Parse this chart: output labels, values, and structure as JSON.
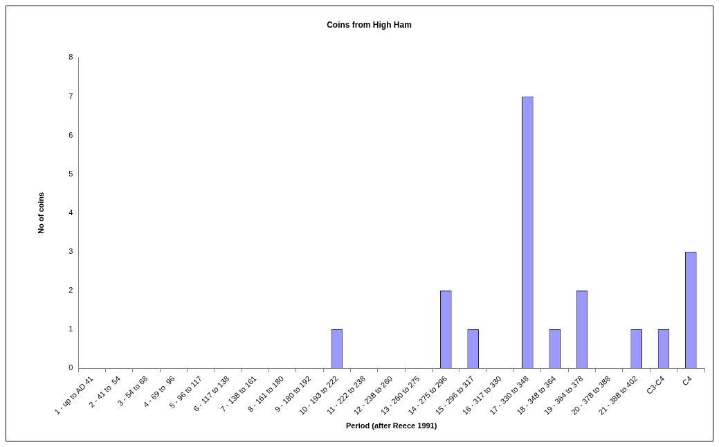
{
  "chart_data": {
    "type": "bar",
    "title": "Coins from High Ham",
    "xlabel": "Period (after Reece 1991)",
    "ylabel": "No of coins",
    "categories": [
      "1 - up to AD 41",
      "2 - 41 to  54",
      "3 - 54 to 68",
      "4 - 69 to  96",
      "5 - 96 to 117",
      "6 - 117 to 138",
      "7 - 138 to 161",
      "8 - 161 to 180",
      "9 - 180 to 192",
      "10 - 193 to 222",
      "11 - 222 to 238",
      "12 - 238 to 260",
      "13 - 260 to 275",
      "14 - 275 to 296",
      "15 - 296 to 317",
      "16 - 317 to 330",
      "17 - 330 to 348",
      "18 - 348 to 364",
      "19 - 364 to 378",
      "20 - 378 to 388",
      "21 - 388 to 402",
      "C3-C4",
      "C4"
    ],
    "values": [
      0,
      0,
      0,
      0,
      0,
      0,
      0,
      0,
      0,
      1,
      0,
      0,
      0,
      2,
      1,
      0,
      7,
      1,
      2,
      0,
      1,
      1,
      3
    ],
    "color": "#9999ff",
    "ylim": [
      0,
      8
    ],
    "yticks": [
      0,
      1,
      2,
      3,
      4,
      5,
      6,
      7,
      8
    ],
    "grid": false,
    "legend": false
  }
}
